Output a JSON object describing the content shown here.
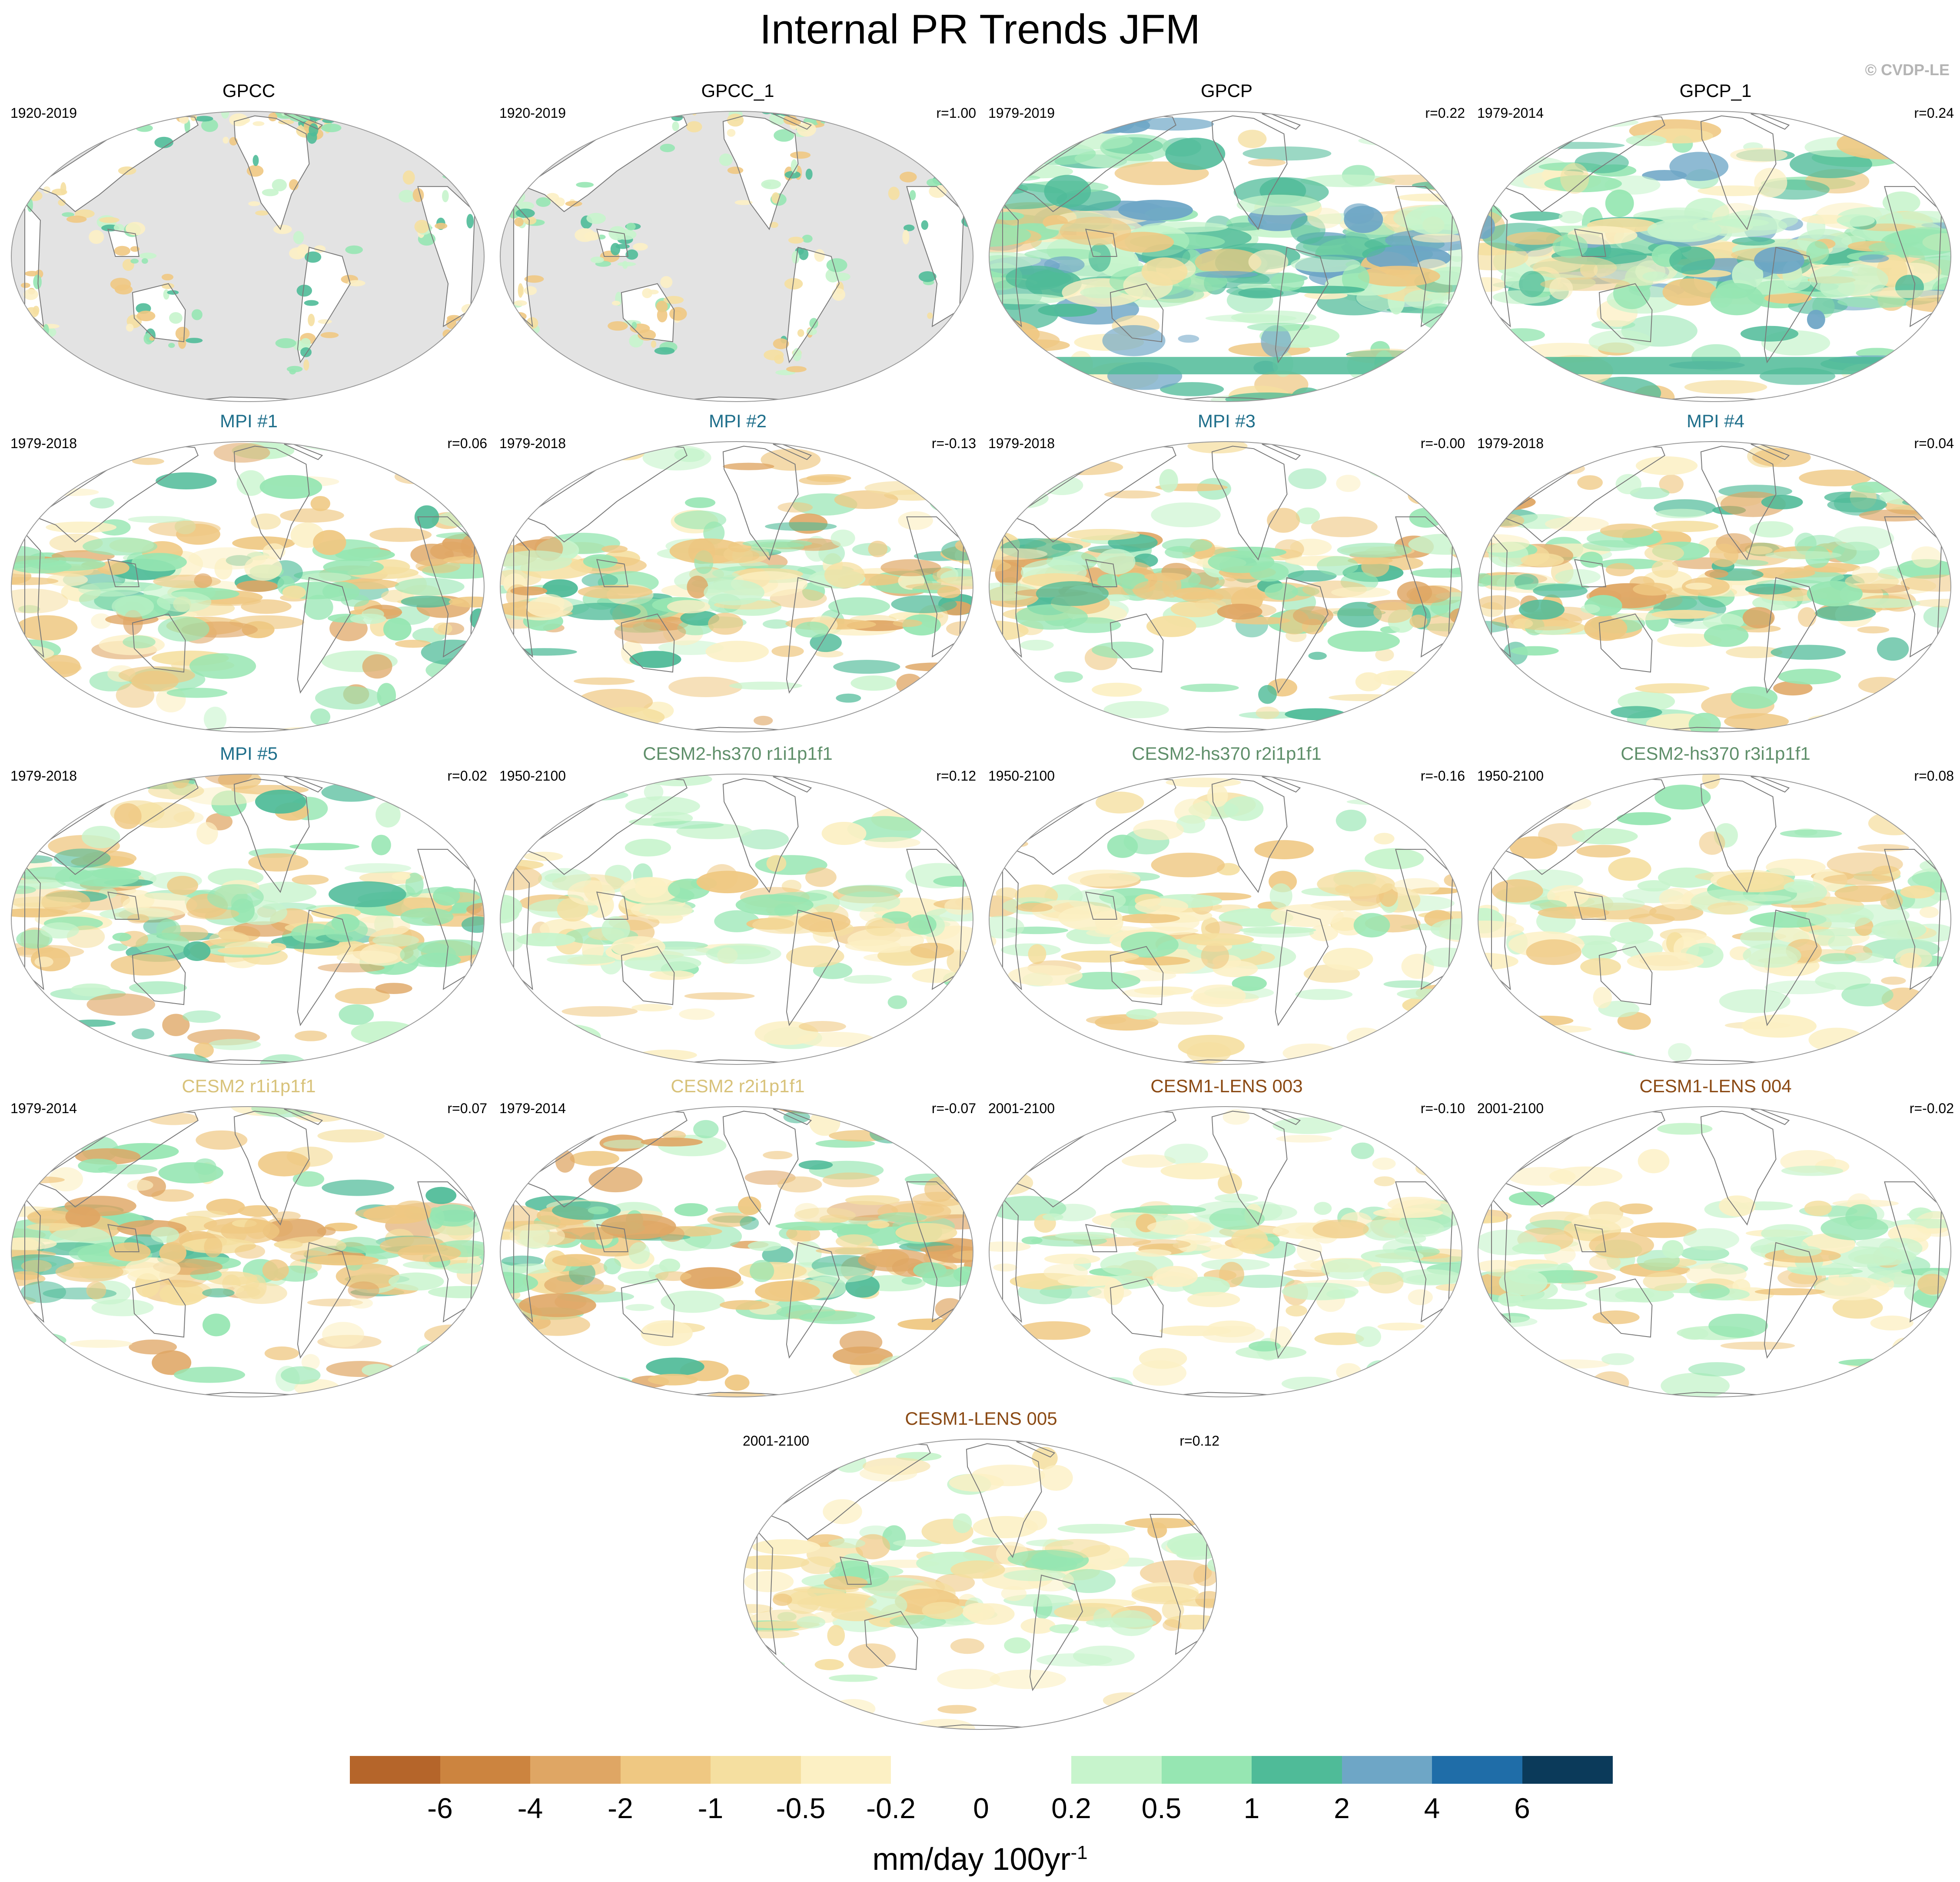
{
  "title": "Internal PR Trends JFM",
  "credit": "© CVDP-LE",
  "panels": [
    {
      "title": "GPCC",
      "title_color": "#000000",
      "period": "1920-2019",
      "r": "",
      "style": "obs-land"
    },
    {
      "title": "GPCC_1",
      "title_color": "#000000",
      "period": "1920-2019",
      "r": "r=1.00",
      "style": "obs-land"
    },
    {
      "title": "GPCP",
      "title_color": "#000000",
      "period": "1979-2019",
      "r": "r=0.22",
      "style": "obs-strong"
    },
    {
      "title": "GPCP_1",
      "title_color": "#000000",
      "period": "1979-2014",
      "r": "r=0.24",
      "style": "obs-strong"
    },
    {
      "title": "MPI #1",
      "title_color": "#1f6f8b",
      "period": "1979-2018",
      "r": "r=0.06",
      "style": "model"
    },
    {
      "title": "MPI #2",
      "title_color": "#1f6f8b",
      "period": "1979-2018",
      "r": "r=-0.13",
      "style": "model"
    },
    {
      "title": "MPI #3",
      "title_color": "#1f6f8b",
      "period": "1979-2018",
      "r": "r=-0.00",
      "style": "model"
    },
    {
      "title": "MPI #4",
      "title_color": "#1f6f8b",
      "period": "1979-2018",
      "r": "r=0.04",
      "style": "model"
    },
    {
      "title": "MPI #5",
      "title_color": "#1f6f8b",
      "period": "1979-2018",
      "r": "r=0.02",
      "style": "model"
    },
    {
      "title": "CESM2-hs370 r1i1p1f1",
      "title_color": "#5f8f6a",
      "period": "1950-2100",
      "r": "r=0.12",
      "style": "model-weak"
    },
    {
      "title": "CESM2-hs370 r2i1p1f1",
      "title_color": "#5f8f6a",
      "period": "1950-2100",
      "r": "r=-0.16",
      "style": "model-weak"
    },
    {
      "title": "CESM2-hs370 r3i1p1f1",
      "title_color": "#5f8f6a",
      "period": "1950-2100",
      "r": "r=0.08",
      "style": "model-weak"
    },
    {
      "title": "CESM2 r1i1p1f1",
      "title_color": "#d8c27a",
      "period": "1979-2014",
      "r": "r=0.07",
      "style": "model"
    },
    {
      "title": "CESM2 r2i1p1f1",
      "title_color": "#d8c27a",
      "period": "1979-2014",
      "r": "r=-0.07",
      "style": "model"
    },
    {
      "title": "CESM1-LENS 003",
      "title_color": "#8b4a14",
      "period": "2001-2100",
      "r": "r=-0.10",
      "style": "model-weak"
    },
    {
      "title": "CESM1-LENS 004",
      "title_color": "#8b4a14",
      "period": "2001-2100",
      "r": "r=-0.02",
      "style": "model-weak"
    },
    {
      "title": "CESM1-LENS 005",
      "title_color": "#8b4a14",
      "period": "2001-2100",
      "r": "r=0.12",
      "style": "model-weak"
    }
  ],
  "colorbar": {
    "colors": [
      "#b5652a",
      "#cc843f",
      "#dfa664",
      "#efc882",
      "#f5dfa0",
      "#fcf0c4",
      "#ffffff",
      "#ffffff",
      "#c7f4cc",
      "#96e6b2",
      "#4fbb98",
      "#6ea6c6",
      "#1f6da8",
      "#0b3a5a"
    ],
    "labels": [
      "-6",
      "-4",
      "-2",
      "-1",
      "-0.5",
      "-0.2",
      "0",
      "0.2",
      "0.5",
      "1",
      "2",
      "4",
      "6"
    ],
    "units": "mm/day 100yr",
    "units_exponent": "-1"
  }
}
